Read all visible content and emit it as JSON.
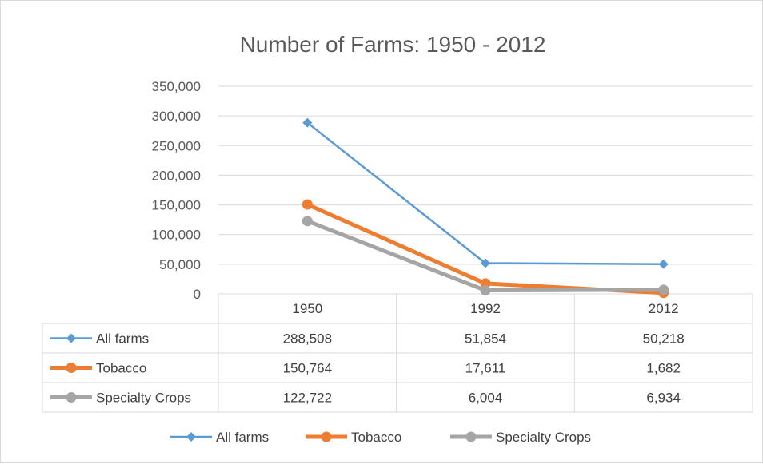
{
  "chart_data": {
    "type": "line",
    "title": "Number of Farms: 1950 - 2012",
    "categories": [
      "1950",
      "1992",
      "2012"
    ],
    "ylim": [
      0,
      350000
    ],
    "yticks": [
      0,
      50000,
      100000,
      150000,
      200000,
      250000,
      300000,
      350000
    ],
    "ytick_labels": [
      "0",
      "50,000",
      "100,000",
      "150,000",
      "200,000",
      "250,000",
      "300,000",
      "350,000"
    ],
    "grid": true,
    "legend_position": "bottom",
    "data_table": true,
    "series": [
      {
        "name": "All farms",
        "values": [
          288508,
          51854,
          50218
        ],
        "value_labels": [
          "288,508",
          "51,854",
          "50,218"
        ],
        "color": "#5b9bd5",
        "marker": "diamond"
      },
      {
        "name": "Tobacco",
        "values": [
          150764,
          17611,
          1682
        ],
        "value_labels": [
          "150,764",
          "17,611",
          "1,682"
        ],
        "color": "#ed7d31",
        "marker": "circle"
      },
      {
        "name": "Specialty Crops",
        "values": [
          122722,
          6004,
          6934
        ],
        "value_labels": [
          "122,722",
          "6,004",
          "6,934"
        ],
        "color": "#a5a5a5",
        "marker": "circle"
      }
    ]
  }
}
